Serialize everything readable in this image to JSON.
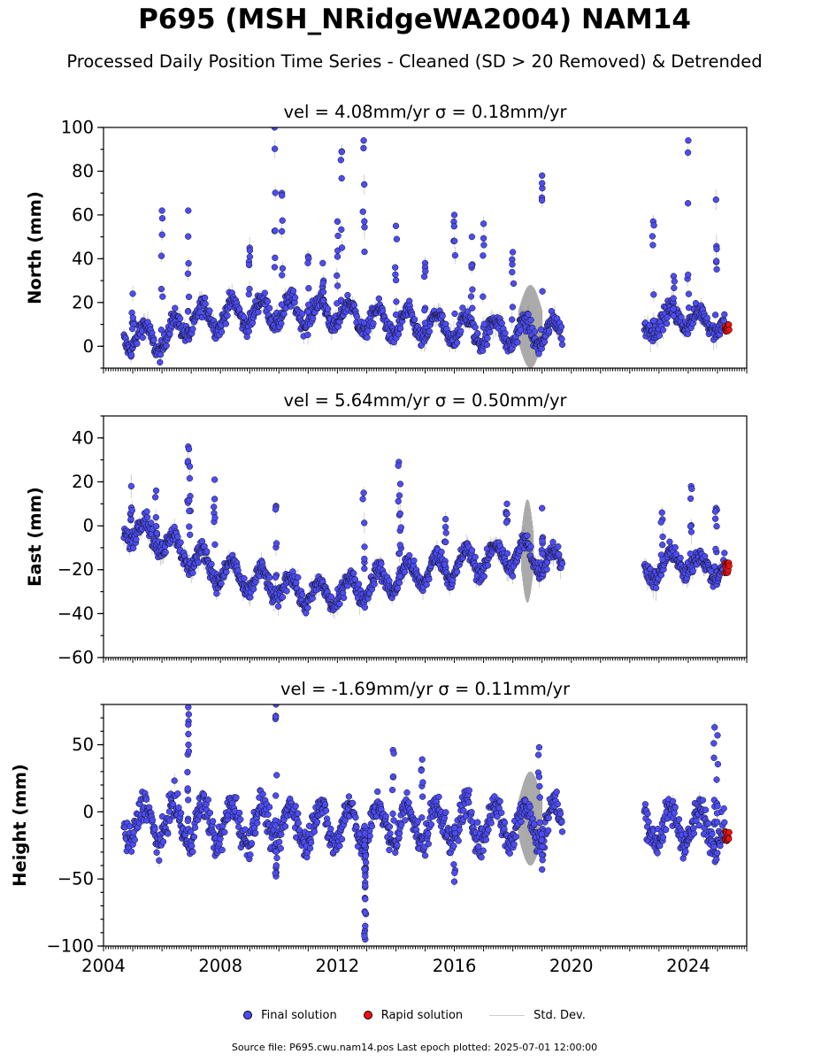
{
  "header": {
    "title": "P695 (MSH_NRidgeWA2004) NAM14",
    "subtitle": "Processed Daily Position Time Series - Cleaned (SD > 20 Removed) & Detrended"
  },
  "legend": {
    "final": "Final solution",
    "rapid": "Rapid solution",
    "std": "Std. Dev."
  },
  "footer": "Source file: P695.cwu.nam14.pos  Last epoch plotted: 2025-07-01 12:00:00",
  "colors": {
    "final": "#4c4cf5",
    "rapid": "#ee1111",
    "std": "#bbbbbb"
  },
  "chart_data": [
    {
      "type": "scatter",
      "title": "vel = 4.08mm/yr   σ = 0.18mm/yr",
      "ylabel": "North (mm)",
      "xlim": [
        2004.0,
        2026.0
      ],
      "ylim": [
        -10,
        100
      ],
      "yticks": [
        0,
        20,
        40,
        60,
        80,
        100
      ],
      "yminor": 10,
      "xtick_labels": [],
      "final_segments": [
        {
          "start": 2004.7,
          "end": 2019.7,
          "baseline": [
            [
              2004.7,
              5
            ],
            [
              2006.0,
              3
            ],
            [
              2007.0,
              12
            ],
            [
              2008.5,
              15
            ],
            [
              2010.0,
              16
            ],
            [
              2012.0,
              15
            ],
            [
              2013.5,
              11
            ],
            [
              2016.0,
              8
            ],
            [
              2018.0,
              6
            ],
            [
              2019.7,
              6
            ]
          ],
          "amp": 6,
          "noise": 3
        },
        {
          "start": 2022.5,
          "end": 2025.25,
          "baseline": [
            [
              2022.5,
              5
            ],
            [
              2023.0,
              13
            ],
            [
              2024.0,
              13
            ],
            [
              2025.25,
              10
            ]
          ],
          "amp": 4,
          "noise": 3
        }
      ],
      "spikes": [
        [
          2005.0,
          24
        ],
        [
          2006.0,
          62
        ],
        [
          2006.9,
          62
        ],
        [
          2009.0,
          45
        ],
        [
          2009.85,
          100
        ],
        [
          2010.1,
          70
        ],
        [
          2011.0,
          41
        ],
        [
          2011.5,
          38
        ],
        [
          2012.0,
          57
        ],
        [
          2012.15,
          89
        ],
        [
          2012.9,
          94
        ],
        [
          2014.0,
          55
        ],
        [
          2015.0,
          38
        ],
        [
          2016.0,
          60
        ],
        [
          2016.6,
          50
        ],
        [
          2017.0,
          56
        ],
        [
          2018.0,
          43
        ],
        [
          2019.0,
          78
        ],
        [
          2022.8,
          57
        ],
        [
          2023.5,
          32
        ],
        [
          2024.0,
          94
        ],
        [
          2024.95,
          67
        ]
      ],
      "rapid": {
        "x": [
          2025.25,
          2025.4
        ],
        "center": 8,
        "spread": 5
      },
      "std_band": {
        "x": [
          2018.2,
          2019.0
        ],
        "lo": -10,
        "hi": 28
      }
    },
    {
      "type": "scatter",
      "title": "vel = 5.64mm/yr   σ = 0.50mm/yr",
      "ylabel": "East (mm)",
      "xlim": [
        2004.0,
        2026.0
      ],
      "ylim": [
        -60,
        50
      ],
      "yticks": [
        -60,
        -40,
        -20,
        0,
        20,
        40
      ],
      "yminor": 10,
      "xtick_labels": [],
      "final_segments": [
        {
          "start": 2004.7,
          "end": 2019.7,
          "baseline": [
            [
              2004.7,
              0
            ],
            [
              2005.5,
              -3
            ],
            [
              2006.5,
              -10
            ],
            [
              2007.5,
              -18
            ],
            [
              2009.0,
              -25
            ],
            [
              2010.5,
              -29
            ],
            [
              2011.5,
              -32
            ],
            [
              2013.0,
              -27
            ],
            [
              2014.5,
              -22
            ],
            [
              2016.0,
              -18
            ],
            [
              2017.5,
              -14
            ],
            [
              2018.5,
              -13
            ],
            [
              2019.7,
              -18
            ]
          ],
          "amp": 6,
          "noise": 3
        },
        {
          "start": 2022.5,
          "end": 2025.25,
          "baseline": [
            [
              2022.5,
              -22
            ],
            [
              2023.5,
              -16
            ],
            [
              2025.25,
              -20
            ]
          ],
          "amp": 5,
          "noise": 3
        }
      ],
      "spikes": [
        [
          2004.95,
          18
        ],
        [
          2005.8,
          16
        ],
        [
          2006.9,
          36
        ],
        [
          2006.95,
          27
        ],
        [
          2007.8,
          21
        ],
        [
          2009.9,
          9
        ],
        [
          2012.9,
          15
        ],
        [
          2014.1,
          29
        ],
        [
          2014.15,
          19
        ],
        [
          2015.7,
          3
        ],
        [
          2017.8,
          10
        ],
        [
          2019.0,
          8
        ],
        [
          2023.1,
          6
        ],
        [
          2024.1,
          18
        ],
        [
          2024.95,
          8
        ]
      ],
      "rapid": {
        "x": [
          2025.25,
          2025.4
        ],
        "center": -19,
        "spread": 5
      },
      "std_band": {
        "x": [
          2018.3,
          2018.7
        ],
        "lo": -35,
        "hi": 12
      }
    },
    {
      "type": "scatter",
      "title": "vel = -1.69mm/yr   σ = 0.11mm/yr",
      "ylabel": "Height (mm)",
      "xlim": [
        2004.0,
        2026.0
      ],
      "ylim": [
        -100,
        80
      ],
      "yticks": [
        -100,
        -50,
        0,
        50
      ],
      "yminor": 10,
      "xtick_labels": [
        "2004",
        "2008",
        "2012",
        "2016",
        "2020",
        "2024"
      ],
      "final_segments": [
        {
          "start": 2004.7,
          "end": 2019.7,
          "baseline": [
            [
              2004.7,
              -8
            ],
            [
              2012.0,
              -10
            ],
            [
              2019.7,
              -8
            ]
          ],
          "amp": 15,
          "noise": 8
        },
        {
          "start": 2022.5,
          "end": 2025.25,
          "baseline": [
            [
              2022.5,
              -10
            ],
            [
              2025.25,
              -12
            ]
          ],
          "amp": 12,
          "noise": 8
        }
      ],
      "spikes": [
        [
          2006.9,
          78
        ],
        [
          2006.9,
          65
        ],
        [
          2009.9,
          80
        ],
        [
          2009.9,
          -48
        ],
        [
          2013.9,
          46
        ],
        [
          2014.9,
          39
        ],
        [
          2016.0,
          -52
        ],
        [
          2018.9,
          48
        ],
        [
          2019.0,
          -43
        ],
        [
          2024.9,
          63
        ],
        [
          2025.0,
          57
        ],
        [
          2012.95,
          -95
        ],
        [
          2012.95,
          -85
        ],
        [
          2012.95,
          -75
        ],
        [
          2012.95,
          -65
        ],
        [
          2012.95,
          -55
        ]
      ],
      "rapid": {
        "x": [
          2025.25,
          2025.4
        ],
        "center": -18,
        "spread": 8
      },
      "std_band": {
        "x": [
          2018.2,
          2019.0
        ],
        "lo": -40,
        "hi": 30
      }
    }
  ]
}
